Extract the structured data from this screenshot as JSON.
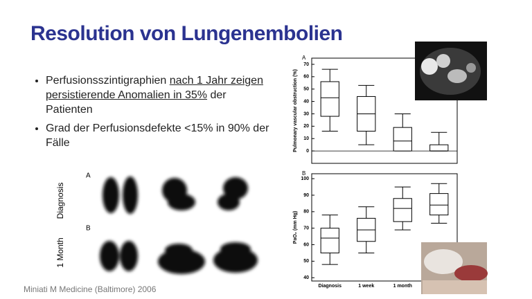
{
  "title": "Resolution von Lungenembolien",
  "bullets": [
    {
      "parts": [
        "Perfusionsszintigraphien ",
        "nach 1 Jahr zeigen persistierende Anomalien in 35%",
        " der Patienten"
      ]
    },
    {
      "parts": [
        "Grad der Perfusionsdefekte <15% in 90% der Fälle"
      ]
    }
  ],
  "scintigraphy": {
    "panel_a": "A",
    "panel_b": "B",
    "row_1": "Diagnosis",
    "row_2": "1 Month"
  },
  "citation": "Miniati M Medicine (Baltimore) 2006",
  "chart_data": [
    {
      "type": "box",
      "panel": "A",
      "ylabel": "Pulmonary vascular obstruction (%)",
      "categories": [
        null,
        null,
        null,
        null
      ],
      "boxes": [
        {
          "min": 16,
          "q1": 28,
          "median": 43,
          "q3": 56,
          "max": 66
        },
        {
          "min": 5,
          "q1": 16,
          "median": 30,
          "q3": 44,
          "max": 53
        },
        {
          "min": 0,
          "q1": 0,
          "median": 8,
          "q3": 19,
          "max": 30
        },
        {
          "min": 0,
          "q1": 0,
          "median": 0,
          "q3": 5,
          "max": 15
        }
      ],
      "hline": 0,
      "ylim": [
        -10,
        75
      ],
      "yticks": [
        0,
        10,
        20,
        30,
        40,
        50,
        60,
        70
      ]
    },
    {
      "type": "box",
      "panel": "B",
      "ylabel": "PaO₂ (mm Hg)",
      "categories": [
        "Diagnosis",
        "1 week",
        "1 month",
        null
      ],
      "boxes": [
        {
          "min": 48,
          "q1": 55,
          "median": 64,
          "q3": 70,
          "max": 78
        },
        {
          "min": 55,
          "q1": 62,
          "median": 69,
          "q3": 76,
          "max": 83
        },
        {
          "min": 69,
          "q1": 74,
          "median": 82,
          "q3": 88,
          "max": 95
        },
        {
          "min": 73,
          "q1": 78,
          "median": 84,
          "q3": 91,
          "max": 97
        }
      ],
      "ylim": [
        38,
        103
      ],
      "yticks": [
        40,
        50,
        60,
        70,
        80,
        90,
        100
      ]
    }
  ]
}
